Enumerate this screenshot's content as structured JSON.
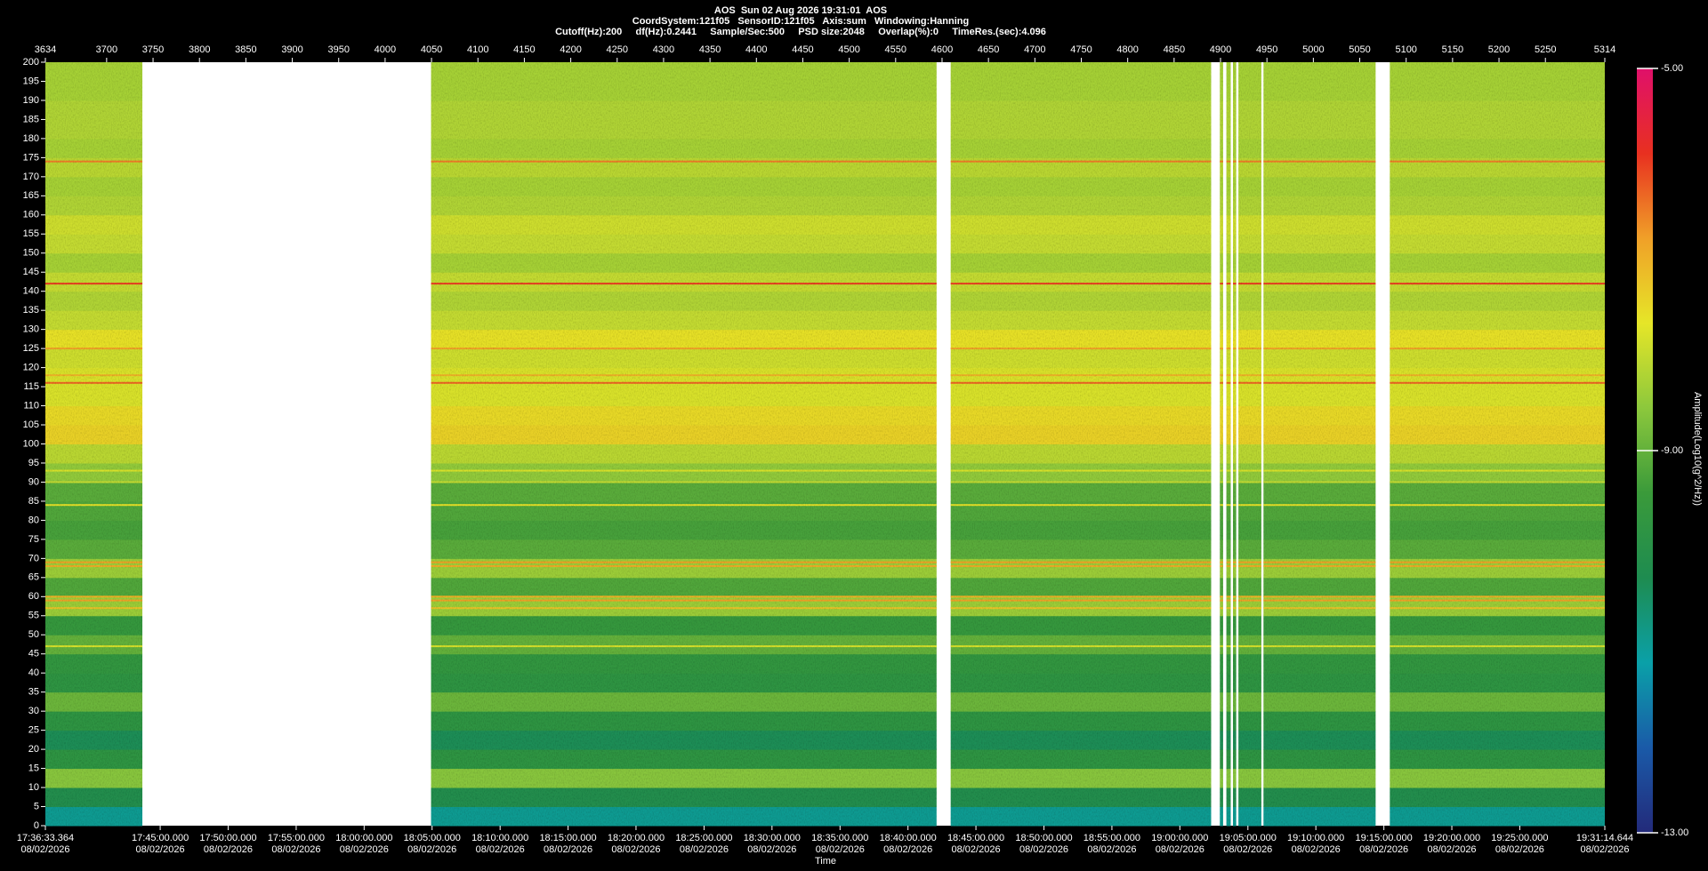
{
  "chart_data": {
    "type": "spectrogram",
    "title": "AOS  Sun 02 Aug 2026 19:31:01  AOS",
    "subtitle": "CoordSystem:121f05   SensorID:121f05   Axis:sum   Windowing:Hanning",
    "info": "Cutoff(Hz):200     df(Hz):0.2441     Sample/Sec:500     PSD size:2048     Overlap(%):0     TimeRes.(sec):4.096",
    "x_label": "Time",
    "colorbar_label": "Amplitude(Log10(g^2/Hz))",
    "xlim": [
      3634,
      5314
    ],
    "xticks": [
      3634,
      3700,
      3750,
      3800,
      3850,
      3900,
      3950,
      4000,
      4050,
      4100,
      4150,
      4200,
      4250,
      4300,
      4350,
      4400,
      4450,
      4500,
      4550,
      4600,
      4650,
      4700,
      4750,
      4800,
      4850,
      4900,
      4950,
      5000,
      5050,
      5100,
      5150,
      5200,
      5250,
      5314
    ],
    "time_ticks": [
      {
        "value": 3634,
        "label": "17:36:33.364",
        "date": "08/02/2026"
      },
      {
        "value": 3757.7,
        "label": "17:45:00.000",
        "date": "08/02/2026"
      },
      {
        "value": 3830.9,
        "label": "17:50:00.000",
        "date": "08/02/2026"
      },
      {
        "value": 3904.2,
        "label": "17:55:00.000",
        "date": "08/02/2026"
      },
      {
        "value": 3977.4,
        "label": "18:00:00.000",
        "date": "08/02/2026"
      },
      {
        "value": 4050.6,
        "label": "18:05:00.000",
        "date": "08/02/2026"
      },
      {
        "value": 4123.9,
        "label": "18:10:00.000",
        "date": "08/02/2026"
      },
      {
        "value": 4197.1,
        "label": "18:15:00.000",
        "date": "08/02/2026"
      },
      {
        "value": 4270.3,
        "label": "18:20:00.000",
        "date": "08/02/2026"
      },
      {
        "value": 4343.6,
        "label": "18:25:00.000",
        "date": "08/02/2026"
      },
      {
        "value": 4416.8,
        "label": "18:30:00.000",
        "date": "08/02/2026"
      },
      {
        "value": 4490.1,
        "label": "18:35:00.000",
        "date": "08/02/2026"
      },
      {
        "value": 4563.3,
        "label": "18:40:00.000",
        "date": "08/02/2026"
      },
      {
        "value": 4636.5,
        "label": "18:45:00.000",
        "date": "08/02/2026"
      },
      {
        "value": 4709.8,
        "label": "18:50:00.000",
        "date": "08/02/2026"
      },
      {
        "value": 4783.0,
        "label": "18:55:00.000",
        "date": "08/02/2026"
      },
      {
        "value": 4856.2,
        "label": "19:00:00.000",
        "date": "08/02/2026"
      },
      {
        "value": 4929.5,
        "label": "19:05:00.000",
        "date": "08/02/2026"
      },
      {
        "value": 5002.7,
        "label": "19:10:00.000",
        "date": "08/02/2026"
      },
      {
        "value": 5076.0,
        "label": "19:15:00.000",
        "date": "08/02/2026"
      },
      {
        "value": 5149.2,
        "label": "19:20:00.000",
        "date": "08/02/2026"
      },
      {
        "value": 5222.4,
        "label": "19:25:00.000",
        "date": "08/02/2026"
      },
      {
        "value": 5314,
        "label": "19:31:14.644",
        "date": "08/02/2026"
      }
    ],
    "ylim": [
      0,
      200
    ],
    "yticks": [
      0,
      5,
      10,
      15,
      20,
      25,
      30,
      35,
      40,
      45,
      50,
      55,
      60,
      65,
      70,
      75,
      80,
      85,
      90,
      95,
      100,
      105,
      110,
      115,
      120,
      125,
      130,
      135,
      140,
      145,
      150,
      155,
      160,
      165,
      170,
      175,
      180,
      185,
      190,
      195,
      200
    ],
    "gaps": [
      [
        3738.5,
        4049.5
      ],
      [
        4594.1,
        4609.3
      ],
      [
        4889.9,
        4899.3
      ],
      [
        4902.8,
        4906.3
      ],
      [
        4911.0,
        4913.4
      ],
      [
        4916.9,
        4919.3
      ],
      [
        4944.0,
        4946.3
      ],
      [
        5067.1,
        5082.4
      ]
    ],
    "freq_bins": [
      0,
      5,
      10,
      15,
      20,
      25,
      30,
      35,
      40,
      45,
      50,
      55,
      60,
      65,
      70,
      75,
      80,
      85,
      90,
      95,
      100,
      105,
      110,
      115,
      120,
      125,
      130,
      135,
      140,
      145,
      150,
      155,
      160,
      165,
      170,
      175,
      180,
      185,
      190,
      195,
      200
    ],
    "amplitudes": [
      -11.0,
      -10.2,
      -8.6,
      -9.8,
      -10.4,
      -9.8,
      -8.9,
      -9.8,
      -9.7,
      -9.0,
      -9.6,
      -8.4,
      -9.2,
      -8.4,
      -9.1,
      -9.3,
      -9.2,
      -9.1,
      -8.5,
      -8.1,
      -7.4,
      -7.5,
      -7.8,
      -7.8,
      -7.9,
      -7.6,
      -8.0,
      -8.2,
      -8.0,
      -8.3,
      -8.0,
      -7.9,
      -8.2,
      -8.3,
      -8.1,
      -8.3,
      -8.2,
      -8.2,
      -8.3,
      -8.3
    ],
    "tonal_lines": [
      {
        "freq": 174,
        "amplitude": -6.5
      },
      {
        "freq": 142,
        "amplitude": -6.0
      },
      {
        "freq": 125,
        "amplitude": -6.8
      },
      {
        "freq": 118,
        "amplitude": -7.0
      },
      {
        "freq": 116,
        "amplitude": -6.3
      },
      {
        "freq": 93,
        "amplitude": -7.8
      },
      {
        "freq": 90,
        "amplitude": -8.0
      },
      {
        "freq": 84,
        "amplitude": -7.6
      },
      {
        "freq": 69,
        "amplitude": -6.8
      },
      {
        "freq": 68,
        "amplitude": -6.9
      },
      {
        "freq": 60,
        "amplitude": -7.0
      },
      {
        "freq": 59,
        "amplitude": -6.8
      },
      {
        "freq": 57,
        "amplitude": -7.2
      },
      {
        "freq": 47,
        "amplitude": -7.8
      }
    ],
    "clim": [
      -13,
      -5
    ],
    "cticks": [
      {
        "value": -5,
        "label": "-5.00"
      },
      {
        "value": -9,
        "label": "-9.00"
      },
      {
        "value": -13,
        "label": "-13.00"
      }
    ],
    "colormap": [
      "#232a7a",
      "#1a5aa8",
      "#0aa0a8",
      "#1e8c50",
      "#3a9a3a",
      "#8cc83c",
      "#e6e628",
      "#f0a028",
      "#e83020",
      "#e0106a"
    ]
  }
}
